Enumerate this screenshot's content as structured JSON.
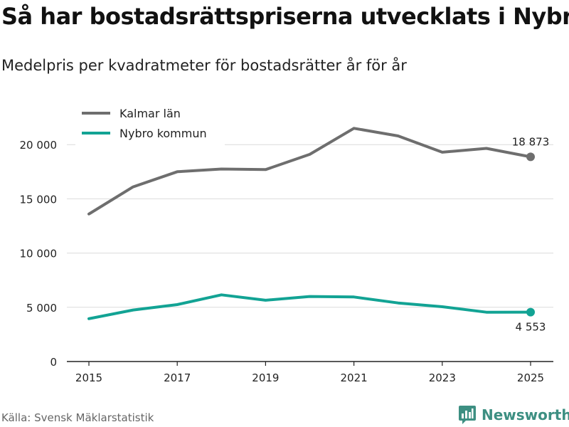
{
  "header": {
    "title": "Så har bostadsrättspriserna utvecklats i Nybro",
    "subtitle": "Medelpris per kvadratmeter för bostadsrätter år för år"
  },
  "footer": {
    "source": "Källa: Svensk Mäklarstatistik",
    "brand": "Newsworthy"
  },
  "chart_data": {
    "type": "line",
    "title": "Så har bostadsrättspriserna utvecklats i Nybro",
    "subtitle": "Medelpris per kvadratmeter för bostadsrätter år för år",
    "xlabel": "",
    "ylabel": "",
    "x": [
      2015,
      2016,
      2017,
      2018,
      2019,
      2020,
      2021,
      2022,
      2023,
      2024,
      2025
    ],
    "xticks": [
      2015,
      2017,
      2019,
      2021,
      2023,
      2025
    ],
    "ylim": [
      0,
      22000
    ],
    "yticks": [
      0,
      5000,
      10000,
      15000,
      20000
    ],
    "ytick_labels": [
      "0",
      "5 000",
      "10 000",
      "15 000",
      "20 000"
    ],
    "grid": true,
    "legend_position": "top-left",
    "series": [
      {
        "name": "Kalmar län",
        "color": "#6e6e6e",
        "values": [
          13600,
          16100,
          17500,
          17750,
          17700,
          19100,
          21500,
          20800,
          19300,
          19650,
          18873
        ],
        "end_label": "18 873"
      },
      {
        "name": "Nybro kommun",
        "color": "#12a394",
        "values": [
          3950,
          4750,
          5250,
          6150,
          5650,
          6000,
          5950,
          5400,
          5050,
          4550,
          4553
        ],
        "end_label": "4 553"
      }
    ]
  }
}
